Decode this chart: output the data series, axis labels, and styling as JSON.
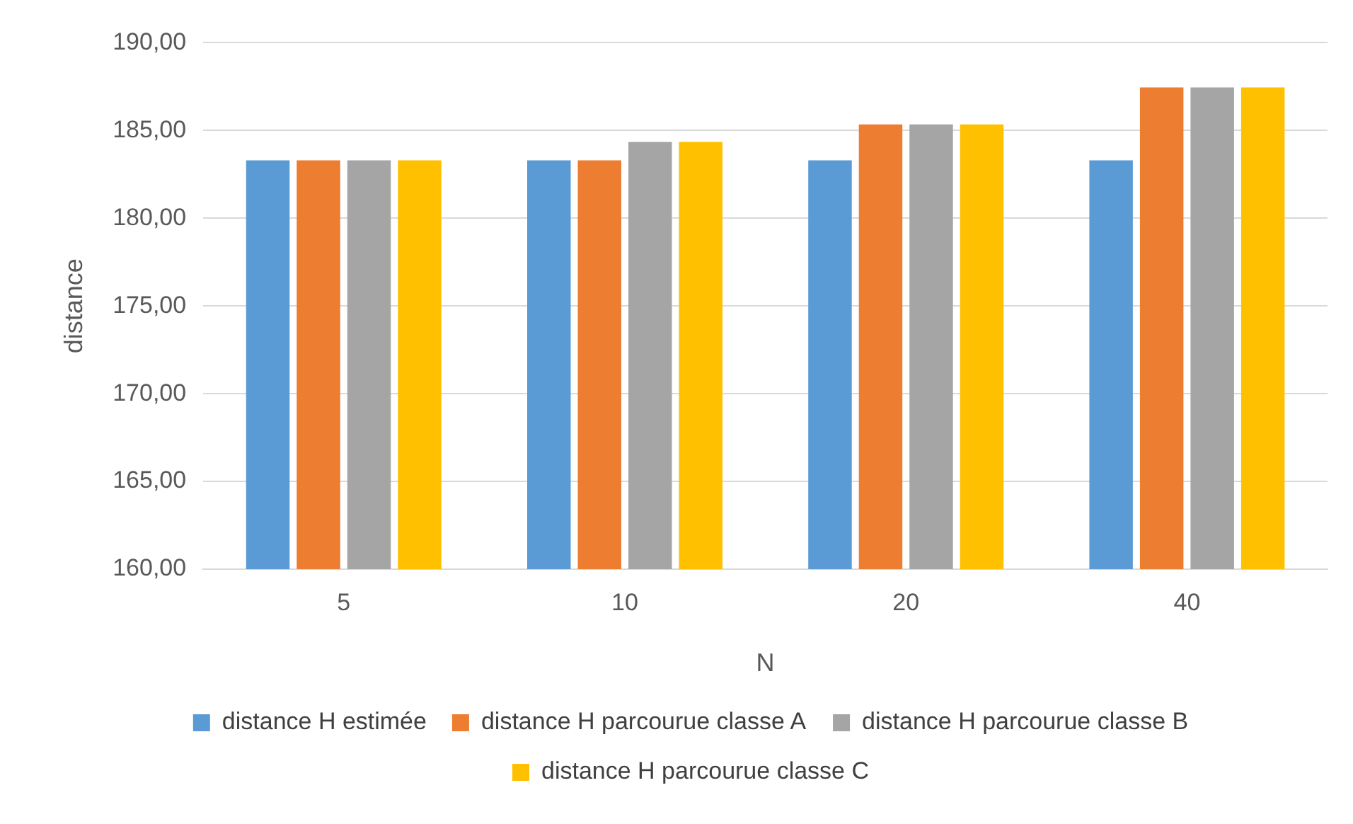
{
  "chart_data": {
    "type": "bar",
    "xlabel": "N",
    "ylabel": "distance",
    "categories": [
      "5",
      "10",
      "20",
      "40"
    ],
    "series": [
      {
        "name": "distance H estimée",
        "color": "#5b9bd5",
        "values": [
          183.3,
          183.3,
          183.3,
          183.3
        ]
      },
      {
        "name": "distance H parcourue classe A",
        "color": "#ed7d31",
        "values": [
          183.3,
          183.3,
          185.35,
          187.45
        ]
      },
      {
        "name": "distance H parcourue classe B",
        "color": "#a5a5a5",
        "values": [
          183.3,
          184.35,
          185.35,
          187.45
        ]
      },
      {
        "name": "distance H parcourue classe C",
        "color": "#ffc000",
        "values": [
          183.3,
          184.35,
          185.35,
          187.45
        ]
      }
    ],
    "ylim": [
      160,
      190
    ],
    "yticks": [
      {
        "value": 160,
        "label": "160,00"
      },
      {
        "value": 165,
        "label": "165,00"
      },
      {
        "value": 170,
        "label": "170,00"
      },
      {
        "value": 175,
        "label": "175,00"
      },
      {
        "value": 180,
        "label": "180,00"
      },
      {
        "value": 185,
        "label": "185,00"
      },
      {
        "value": 190,
        "label": "190,00"
      }
    ],
    "grid": "y",
    "legend": "bottom"
  }
}
